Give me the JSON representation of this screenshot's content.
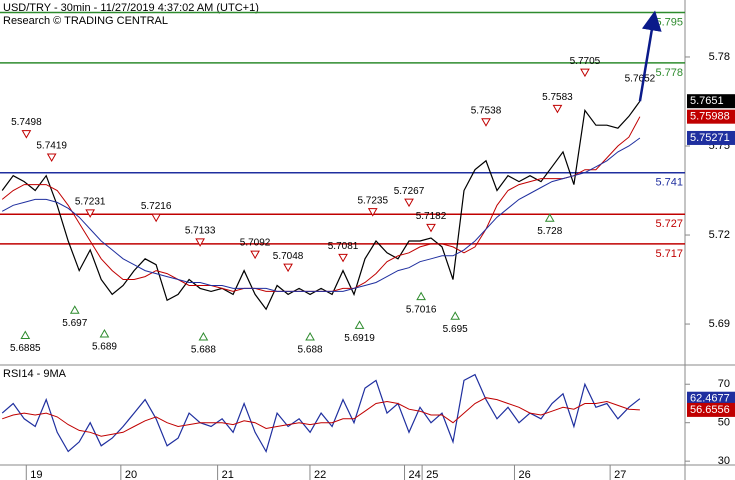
{
  "chart_data": [
    {
      "type": "line",
      "title": "USD/TRY - 30min - 11/27/2019 4:37:02 AM (UTC+1)",
      "subtitle": "Research © TRADING CENTRAL",
      "xlim": [
        -0.2,
        62.1
      ],
      "ylim": [
        5.6762,
        5.7992
      ],
      "yticks": [
        5.69,
        5.72,
        5.75,
        5.78
      ],
      "series": [
        {
          "color": "#000000",
          "values": [
            5.735,
            5.74,
            5.738,
            5.735,
            5.74,
            5.73,
            5.718,
            5.708,
            5.715,
            5.705,
            5.7,
            5.703,
            5.708,
            5.712,
            5.71,
            5.698,
            5.7,
            5.705,
            5.702,
            5.701,
            5.702,
            5.7,
            5.708,
            5.7,
            5.695,
            5.703,
            5.7,
            5.702,
            5.7,
            5.702,
            5.7,
            5.708,
            5.7,
            5.712,
            5.718,
            5.714,
            5.712,
            5.718,
            5.718,
            5.719,
            5.716,
            5.705,
            5.735,
            5.742,
            5.745,
            5.735,
            5.74,
            5.738,
            5.74,
            5.738,
            5.743,
            5.748,
            5.737,
            5.762,
            5.757,
            5.757,
            5.756,
            5.76,
            5.7651
          ]
        },
        {
          "color": "#c00000",
          "values": [
            5.732,
            5.735,
            5.737,
            5.737,
            5.737,
            5.735,
            5.73,
            5.724,
            5.718,
            5.712,
            5.708,
            5.705,
            5.705,
            5.706,
            5.708,
            5.707,
            5.705,
            5.703,
            5.703,
            5.703,
            5.702,
            5.701,
            5.702,
            5.702,
            5.701,
            5.701,
            5.701,
            5.701,
            5.701,
            5.701,
            5.701,
            5.702,
            5.702,
            5.704,
            5.707,
            5.711,
            5.713,
            5.714,
            5.716,
            5.717,
            5.717,
            5.716,
            5.714,
            5.716,
            5.722,
            5.73,
            5.735,
            5.737,
            5.738,
            5.739,
            5.739,
            5.739,
            5.74,
            5.742,
            5.742,
            5.746,
            5.75,
            5.753,
            5.75988
          ]
        },
        {
          "color": "#1f2f9f",
          "values": [
            5.728,
            5.73,
            5.731,
            5.732,
            5.732,
            5.731,
            5.729,
            5.726,
            5.722,
            5.718,
            5.715,
            5.712,
            5.71,
            5.708,
            5.707,
            5.706,
            5.705,
            5.704,
            5.704,
            5.703,
            5.703,
            5.702,
            5.702,
            5.702,
            5.702,
            5.701,
            5.701,
            5.701,
            5.701,
            5.701,
            5.701,
            5.701,
            5.702,
            5.703,
            5.704,
            5.706,
            5.708,
            5.709,
            5.711,
            5.712,
            5.713,
            5.713,
            5.715,
            5.718,
            5.722,
            5.726,
            5.729,
            5.732,
            5.734,
            5.736,
            5.738,
            5.739,
            5.74,
            5.741,
            5.743,
            5.745,
            5.748,
            5.75,
            5.75271
          ]
        }
      ],
      "levels": [
        {
          "value": 5.795,
          "color": "#2e8b2e"
        },
        {
          "value": 5.778,
          "color": "#2e8b2e"
        },
        {
          "value": 5.741,
          "color": "#1f2f9f"
        },
        {
          "value": 5.727,
          "color": "#c00000"
        },
        {
          "value": 5.717,
          "color": "#c00000"
        }
      ],
      "annotations": [
        {
          "x": 2.2,
          "value": 5.7498,
          "kind": "high"
        },
        {
          "x": 4.5,
          "value": 5.7419,
          "kind": "high"
        },
        {
          "x": 8,
          "value": 5.7231,
          "kind": "high"
        },
        {
          "x": 14,
          "value": 5.7216,
          "kind": "high"
        },
        {
          "x": 18,
          "value": 5.7133,
          "kind": "high"
        },
        {
          "x": 23,
          "value": 5.7092,
          "kind": "high"
        },
        {
          "x": 26,
          "value": 5.7048,
          "kind": "high"
        },
        {
          "x": 31,
          "value": 5.7081,
          "kind": "high"
        },
        {
          "x": 33.7,
          "value": 5.7235,
          "kind": "high"
        },
        {
          "x": 37,
          "value": 5.7267,
          "kind": "high"
        },
        {
          "x": 39,
          "value": 5.7182,
          "kind": "high"
        },
        {
          "x": 44,
          "value": 5.7538,
          "kind": "high"
        },
        {
          "x": 50.5,
          "value": 5.7583,
          "kind": "high"
        },
        {
          "x": 53,
          "value": 5.7705,
          "kind": "high"
        },
        {
          "x": 58,
          "value": 5.7652,
          "kind": "text"
        },
        {
          "x": 2.1,
          "value": 5.6885,
          "kind": "low"
        },
        {
          "x": 6.6,
          "value": 5.697,
          "kind": "low"
        },
        {
          "x": 9.3,
          "value": 5.689,
          "kind": "low"
        },
        {
          "x": 18.3,
          "value": 5.688,
          "kind": "low"
        },
        {
          "x": 28,
          "value": 5.688,
          "kind": "low"
        },
        {
          "x": 32.5,
          "value": 5.6919,
          "kind": "low"
        },
        {
          "x": 38.1,
          "value": 5.7016,
          "kind": "low"
        },
        {
          "x": 41.2,
          "value": 5.695,
          "kind": "low"
        },
        {
          "x": 49.8,
          "value": 5.728,
          "kind": "low"
        }
      ]
    },
    {
      "type": "line",
      "title": "RSI14 - 9MA",
      "xlim": [
        -0.2,
        62.1
      ],
      "ylim": [
        28,
        80
      ],
      "yticks": [
        30,
        50,
        70
      ],
      "xticks": [
        {
          "value": 3.1,
          "label": "19"
        },
        {
          "value": 11.7,
          "label": "20"
        },
        {
          "value": 20.5,
          "label": "21"
        },
        {
          "value": 28.9,
          "label": "22"
        },
        {
          "value": 37.5,
          "label": "24"
        },
        {
          "value": 39.1,
          "label": "25"
        },
        {
          "value": 47.5,
          "label": "26"
        },
        {
          "value": 56.2,
          "label": "27"
        }
      ],
      "series": [
        {
          "color": "#1f2f9f",
          "values": [
            55,
            60,
            52,
            48,
            62,
            45,
            35,
            40,
            50,
            38,
            42,
            48,
            55,
            62,
            52,
            38,
            42,
            55,
            50,
            48,
            52,
            45,
            60,
            45,
            35,
            55,
            48,
            52,
            45,
            55,
            48,
            62,
            50,
            68,
            72,
            55,
            60,
            45,
            58,
            50,
            55,
            40,
            72,
            75,
            62,
            52,
            58,
            50,
            55,
            52,
            60,
            65,
            48,
            70,
            58,
            60,
            52,
            58,
            62.4677
          ]
        },
        {
          "color": "#c00000",
          "values": [
            52,
            54,
            55,
            54,
            55,
            53,
            49,
            46,
            45,
            43,
            44,
            45,
            48,
            51,
            53,
            50,
            48,
            49,
            50,
            50,
            50,
            49,
            51,
            50,
            47,
            48,
            49,
            50,
            49,
            50,
            50,
            52,
            52,
            56,
            60,
            61,
            60,
            57,
            56,
            54,
            54,
            50,
            55,
            60,
            63,
            62,
            60,
            58,
            55,
            54,
            56,
            58,
            57,
            60,
            60,
            61,
            59,
            57,
            56.6556
          ]
        }
      ]
    }
  ]
}
